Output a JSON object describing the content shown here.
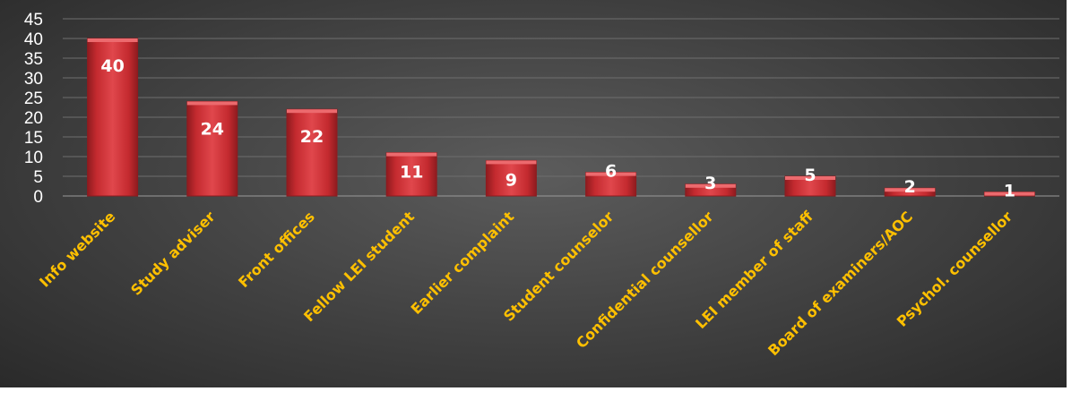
{
  "chart_data": {
    "type": "bar",
    "categories": [
      "Info website",
      "Study adviser",
      "Front offices",
      "Fellow LEI student",
      "Earlier complaint",
      "Student counselor",
      "Confidential counsellor",
      "LEI member of staff",
      "Board of examiners/AOC",
      "Psychol. counsellor"
    ],
    "values": [
      40,
      24,
      22,
      11,
      9,
      6,
      3,
      5,
      2,
      1
    ],
    "yticks": [
      "0",
      "5",
      "10",
      "15",
      "20",
      "25",
      "30",
      "35",
      "40",
      "45"
    ],
    "ylim": [
      0,
      45
    ],
    "grid": true,
    "legend": "none",
    "colors": {
      "bar": "#d1353a",
      "bar_dark": "#8e1b1f",
      "bar_light": "#ec6a6e",
      "value_label": "#ffffff",
      "category_label": "#ffc000",
      "background": "#3d3d3d"
    }
  }
}
